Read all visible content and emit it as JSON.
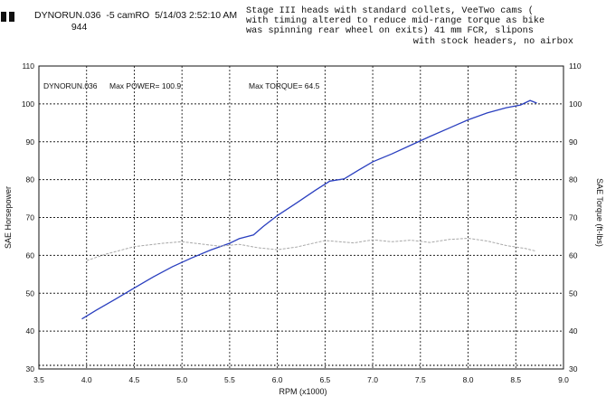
{
  "header": {
    "run_file": "DYNORUN.036",
    "run_tag": "-5 camRO",
    "run_date": "5/14/03",
    "run_time": "2:52:10 AM",
    "run_id": "944",
    "notes": [
      "Stage III heads with standard collets, VeeTwo cams (",
      "with timing altered to reduce mid-range torque as bike",
      "was spinning rear wheel on exits) 41 mm FCR, slipons",
      "with stock headers, no airbox"
    ]
  },
  "chart_data": {
    "type": "line",
    "annotations": {
      "run": "DYNORUN.036",
      "max_power": "Max POWER= 100.9",
      "max_torque": "Max TORQUE= 64.5"
    },
    "xlabel": "RPM (x1000)",
    "ylabel_left": "SAE Horsepower",
    "ylabel_right": "SAE Torque (ft-lbs)",
    "xlim": [
      3.5,
      9.0
    ],
    "ylim": [
      30,
      110
    ],
    "x_ticks": [
      "3.5",
      "4.0",
      "4.5",
      "5.0",
      "5.5",
      "6.0",
      "6.5",
      "7.0",
      "7.5",
      "8.0",
      "8.5",
      "9.0"
    ],
    "y_ticks": [
      "30",
      "40",
      "50",
      "60",
      "70",
      "80",
      "90",
      "100",
      "110"
    ],
    "grid": true,
    "series": [
      {
        "id": "power",
        "color": "#2a3fbf",
        "points": [
          [
            3.95,
            43.2
          ],
          [
            4.1,
            45.5
          ],
          [
            4.3,
            48.4
          ],
          [
            4.5,
            51.4
          ],
          [
            4.7,
            54.3
          ],
          [
            4.9,
            57.0
          ],
          [
            5.1,
            59.3
          ],
          [
            5.3,
            61.4
          ],
          [
            5.5,
            63.2
          ],
          [
            5.6,
            64.4
          ],
          [
            5.75,
            65.4
          ],
          [
            5.85,
            67.6
          ],
          [
            6.0,
            70.5
          ],
          [
            6.2,
            73.8
          ],
          [
            6.4,
            77.2
          ],
          [
            6.55,
            79.6
          ],
          [
            6.7,
            80.2
          ],
          [
            6.85,
            82.5
          ],
          [
            7.0,
            84.7
          ],
          [
            7.2,
            86.8
          ],
          [
            7.4,
            89.1
          ],
          [
            7.6,
            91.4
          ],
          [
            7.8,
            93.6
          ],
          [
            8.0,
            95.8
          ],
          [
            8.2,
            97.6
          ],
          [
            8.4,
            99.0
          ],
          [
            8.55,
            99.7
          ],
          [
            8.65,
            100.9
          ],
          [
            8.72,
            100.2
          ]
        ]
      },
      {
        "id": "torque",
        "color": "#a8a8a8",
        "points": [
          [
            4.0,
            58.6
          ],
          [
            4.2,
            60.3
          ],
          [
            4.5,
            62.3
          ],
          [
            4.8,
            63.2
          ],
          [
            5.0,
            63.6
          ],
          [
            5.2,
            63.0
          ],
          [
            5.4,
            62.4
          ],
          [
            5.6,
            62.9
          ],
          [
            5.8,
            62.0
          ],
          [
            6.0,
            61.5
          ],
          [
            6.2,
            62.2
          ],
          [
            6.5,
            63.9
          ],
          [
            6.8,
            63.3
          ],
          [
            7.0,
            64.1
          ],
          [
            7.2,
            63.6
          ],
          [
            7.4,
            64.0
          ],
          [
            7.6,
            63.4
          ],
          [
            7.8,
            64.2
          ],
          [
            8.0,
            64.5
          ],
          [
            8.2,
            63.8
          ],
          [
            8.4,
            62.6
          ],
          [
            8.6,
            61.8
          ],
          [
            8.7,
            61.2
          ]
        ]
      }
    ]
  }
}
